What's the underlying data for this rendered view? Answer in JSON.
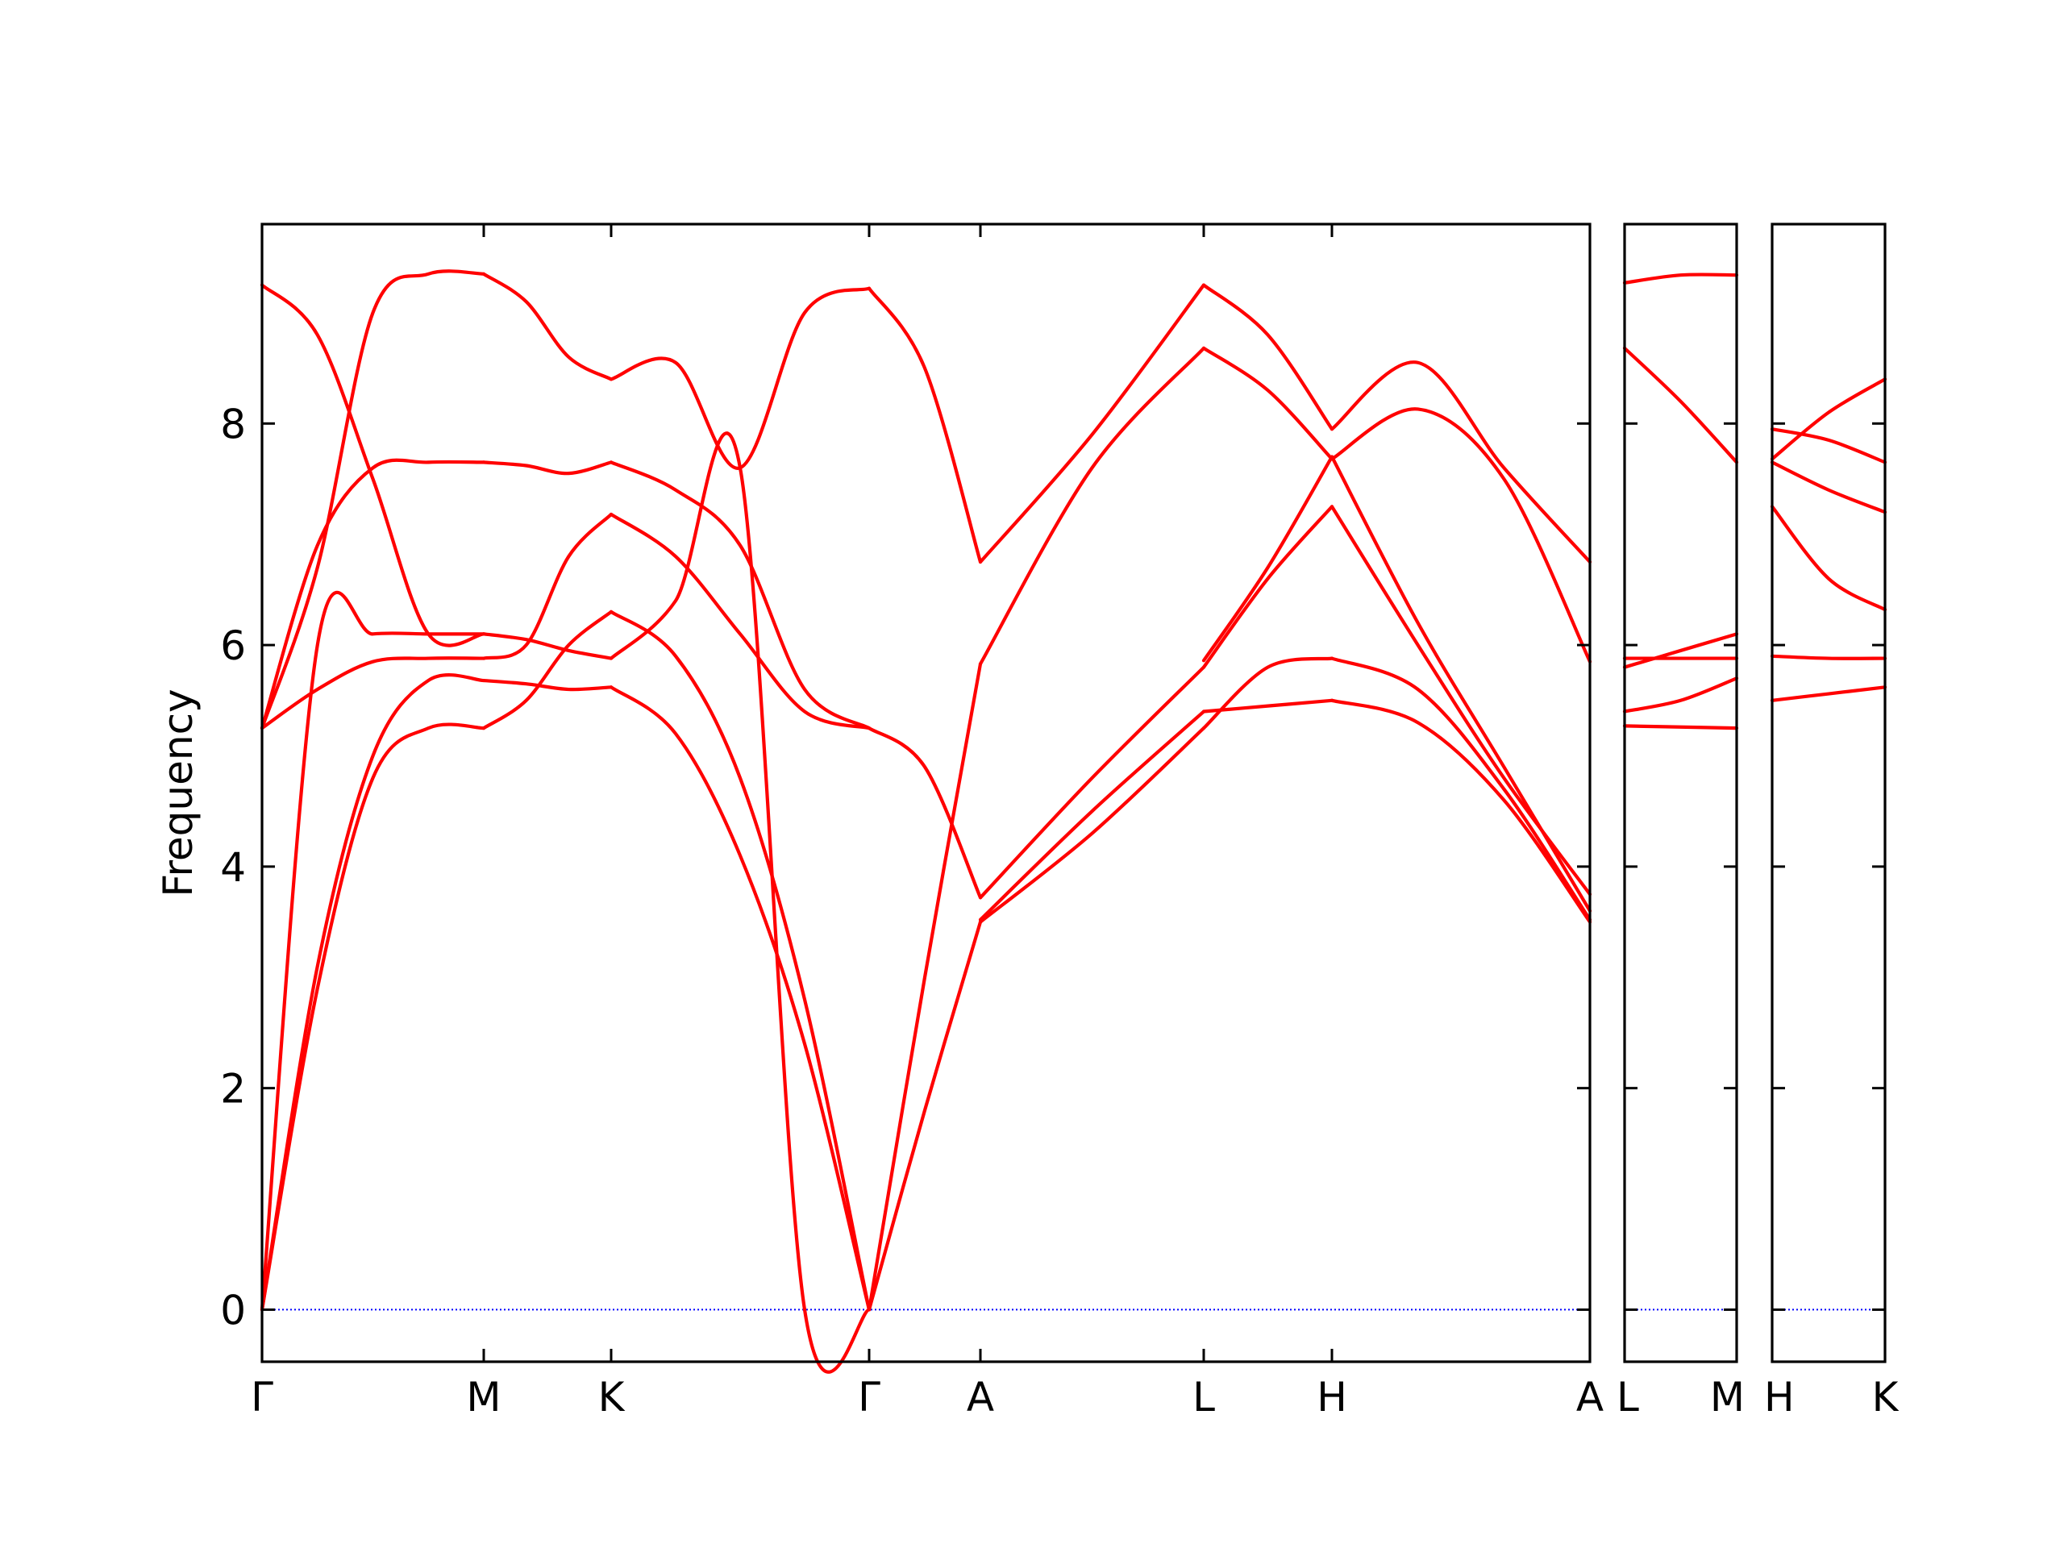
{
  "chart_data": {
    "type": "line",
    "title": "",
    "ylabel": "Frequency",
    "xlabel": "",
    "ylim": [
      -0.47,
      9.8
    ],
    "yticks": [
      0,
      2,
      4,
      6,
      8
    ],
    "grid": false,
    "colors": {
      "band": "#ff0000",
      "zero_line": "#0000ff",
      "axes": "#000000"
    },
    "panels": [
      {
        "name": "main",
        "tick_labels": [
          "Γ",
          "M",
          "K",
          "Γ",
          "A",
          "L",
          "H",
          "A"
        ],
        "segments": [
          {
            "from": "Γ",
            "to": "M",
            "bands": [
              [
                0.0,
                2.9,
                4.8,
                5.25,
                5.25
              ],
              [
                0.0,
                3.1,
                5.0,
                5.68,
                5.68
              ],
              [
                5.25,
                6.9,
                7.6,
                7.65,
                7.65
              ],
              [
                5.25,
                6.7,
                9.0,
                9.35,
                9.35
              ],
              [
                5.25,
                5.6,
                5.85,
                5.88,
                5.88
              ],
              [
                9.25,
                8.8,
                7.5,
                6.1,
                6.1
              ],
              [
                0.0,
                6.0,
                6.1,
                6.1,
                6.1
              ]
            ]
          },
          {
            "from": "M",
            "to": "K",
            "bands": [
              [
                5.25,
                5.5,
                6.0,
                6.3
              ],
              [
                5.68,
                5.65,
                5.6,
                5.62
              ],
              [
                7.65,
                7.62,
                7.55,
                7.65
              ],
              [
                9.35,
                9.1,
                8.6,
                8.4
              ],
              [
                5.88,
                6.0,
                6.8,
                7.18
              ],
              [
                6.1,
                6.05,
                5.95,
                5.88
              ]
            ]
          },
          {
            "from": "K",
            "to": "Γ",
            "bands": [
              [
                5.62,
                5.2,
                4.1,
                2.4,
                0.0
              ],
              [
                6.3,
                5.9,
                4.8,
                2.8,
                0.0
              ],
              [
                7.65,
                7.4,
                6.9,
                5.6,
                5.25
              ],
              [
                8.4,
                8.55,
                7.6,
                9.0,
                9.22
              ],
              [
                7.18,
                6.8,
                6.1,
                5.4,
                5.25
              ],
              [
                5.88,
                6.4,
                7.6,
                0.0,
                0.0
              ]
            ]
          },
          {
            "from": "Γ",
            "to": "A",
            "bands": [
              [
                0.0,
                1.8,
                3.5
              ],
              [
                0.0,
                3.0,
                5.83
              ],
              [
                9.22,
                8.5,
                6.75
              ],
              [
                5.25,
                4.9,
                3.72
              ]
            ]
          },
          {
            "from": "A",
            "to": "L",
            "bands": [
              [
                3.5,
                4.3,
                5.25
              ],
              [
                3.72,
                4.8,
                5.8
              ],
              [
                6.75,
                7.9,
                9.25
              ],
              [
                5.83,
                7.6,
                8.68
              ],
              [
                3.52,
                4.5,
                5.4
              ]
            ]
          },
          {
            "from": "L",
            "to": "H",
            "bands": [
              [
                5.25,
                5.8,
                5.88
              ],
              [
                5.4,
                5.45,
                5.5
              ],
              [
                9.25,
                8.8,
                7.95
              ],
              [
                8.68,
                8.3,
                7.68
              ],
              [
                5.8,
                6.6,
                7.25
              ],
              [
                5.86,
                6.7,
                7.7
              ]
            ]
          },
          {
            "from": "H",
            "to": "A",
            "bands": [
              [
                7.95,
                8.55,
                7.6,
                6.75
              ],
              [
                7.68,
                8.13,
                7.5,
                5.85
              ],
              [
                7.25,
                6.0,
                4.8,
                3.75
              ],
              [
                7.7,
                6.2,
                4.9,
                3.6
              ],
              [
                5.88,
                5.6,
                4.7,
                3.52
              ],
              [
                5.5,
                5.3,
                4.6,
                3.5
              ]
            ]
          }
        ]
      },
      {
        "name": "L-M",
        "tick_labels": [
          "L",
          "M"
        ],
        "segments": [
          {
            "from": "L",
            "to": "M",
            "bands": [
              [
                9.27,
                9.34,
                9.34
              ],
              [
                8.68,
                8.2,
                7.65
              ],
              [
                5.8,
                5.95,
                6.1
              ],
              [
                5.88,
                5.88,
                5.88
              ],
              [
                5.4,
                5.5,
                5.7
              ],
              [
                5.27,
                5.26,
                5.25
              ]
            ]
          }
        ]
      },
      {
        "name": "H-K",
        "tick_labels": [
          "H",
          "K"
        ],
        "segments": [
          {
            "from": "H",
            "to": "K",
            "bands": [
              [
                7.95,
                7.85,
                7.65
              ],
              [
                7.68,
                8.1,
                8.4
              ],
              [
                7.65,
                7.4,
                7.2
              ],
              [
                7.25,
                6.6,
                6.32
              ],
              [
                5.9,
                5.88,
                5.88
              ],
              [
                5.5,
                5.56,
                5.62
              ]
            ]
          }
        ]
      }
    ]
  }
}
